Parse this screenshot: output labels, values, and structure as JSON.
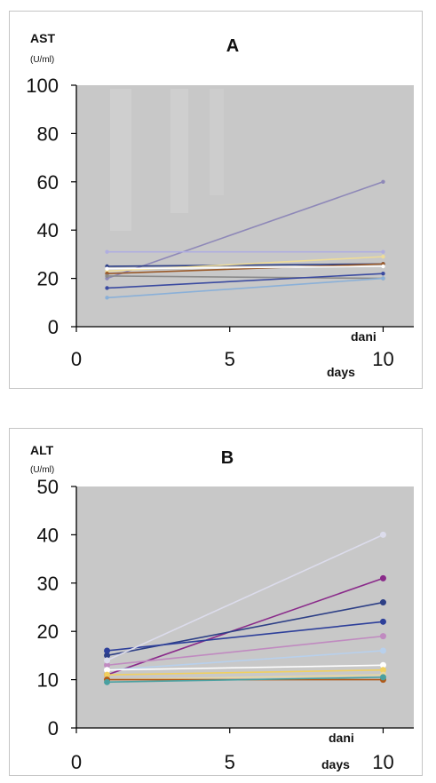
{
  "chart_data": [
    {
      "type": "line",
      "panel_label": "A",
      "ylabel": "AST",
      "yunit": "(U/ml)",
      "xlabel_top": "dani",
      "xlabel_bottom": "days",
      "xlim": [
        0,
        11
      ],
      "ylim": [
        0,
        100
      ],
      "xticks": [
        "0",
        "5",
        "10"
      ],
      "yticks": [
        "0",
        "20",
        "40",
        "60",
        "80",
        "100"
      ],
      "grid": false,
      "background": "#c8c8c8",
      "series": [
        {
          "x": [
            1,
            10
          ],
          "y": [
            20,
            60
          ],
          "color": "#8e88b8"
        },
        {
          "x": [
            1,
            10
          ],
          "y": [
            31,
            31
          ],
          "color": "#b0aee0"
        },
        {
          "x": [
            1,
            10
          ],
          "y": [
            25,
            26
          ],
          "color": "#2d3f86"
        },
        {
          "x": [
            1,
            10
          ],
          "y": [
            23,
            29
          ],
          "color": "#eedc98"
        },
        {
          "x": [
            1,
            10
          ],
          "y": [
            22,
            26
          ],
          "color": "#9a5a2a"
        },
        {
          "x": [
            1,
            10
          ],
          "y": [
            21,
            20
          ],
          "color": "#8a8a8a"
        },
        {
          "x": [
            1,
            10
          ],
          "y": [
            16,
            22
          ],
          "color": "#3a4aa0"
        },
        {
          "x": [
            1,
            10
          ],
          "y": [
            12,
            20
          ],
          "color": "#8ab0d8"
        },
        {
          "x": [
            1,
            10
          ],
          "y": [
            24,
            25
          ],
          "color": "#ffffff"
        }
      ]
    },
    {
      "type": "line",
      "panel_label": "B",
      "ylabel": "ALT",
      "yunit": "(U/ml)",
      "xlabel_top": "dani",
      "xlabel_bottom": "days",
      "xlim": [
        0,
        11
      ],
      "ylim": [
        0,
        50
      ],
      "xticks": [
        "0",
        "5",
        "10"
      ],
      "yticks": [
        "0",
        "10",
        "20",
        "30",
        "40",
        "50"
      ],
      "grid": false,
      "background": "#c8c8c8",
      "series": [
        {
          "x": [
            1,
            10
          ],
          "y": [
            11,
            31
          ],
          "color": "#8a2a8a"
        },
        {
          "x": [
            1,
            10
          ],
          "y": [
            15,
            26
          ],
          "color": "#2d3f86"
        },
        {
          "x": [
            1,
            10
          ],
          "y": [
            16,
            22
          ],
          "color": "#2d3f9a"
        },
        {
          "x": [
            1,
            10
          ],
          "y": [
            13,
            19
          ],
          "color": "#c08ac0"
        },
        {
          "x": [
            1,
            10
          ],
          "y": [
            14,
            40
          ],
          "color": "#dcdcec"
        },
        {
          "x": [
            1,
            10
          ],
          "y": [
            12,
            16
          ],
          "color": "#b8d0ec"
        },
        {
          "x": [
            1,
            10
          ],
          "y": [
            12,
            13
          ],
          "color": "#ffffff"
        },
        {
          "x": [
            1,
            10
          ],
          "y": [
            11,
            12
          ],
          "color": "#f0d060"
        },
        {
          "x": [
            1,
            10
          ],
          "y": [
            10,
            11
          ],
          "color": "#e8d8a0"
        },
        {
          "x": [
            1,
            10
          ],
          "y": [
            10,
            10
          ],
          "color": "#b05a1a"
        },
        {
          "x": [
            1,
            10
          ],
          "y": [
            9.5,
            10.5
          ],
          "color": "#4aa0a0"
        }
      ]
    }
  ]
}
